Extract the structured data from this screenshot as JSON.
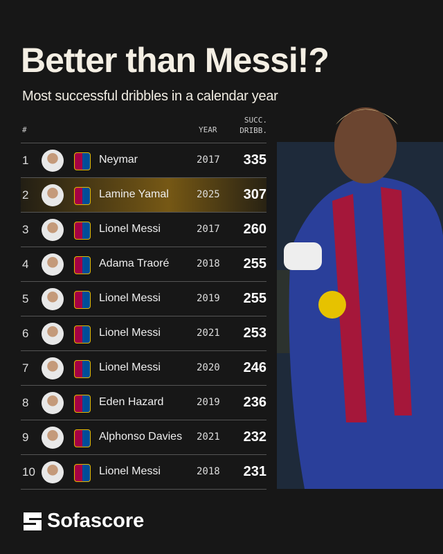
{
  "header": {
    "title": "Better than Messi!?",
    "subtitle": "Most successful dribbles in a calendar year"
  },
  "table": {
    "columns": [
      "#",
      "YEAR",
      "SUCC. DRIBB."
    ],
    "rows": [
      [
        1,
        "Neymar",
        2017,
        335
      ],
      [
        2,
        "Lamine Yamal",
        2025,
        307
      ],
      [
        3,
        "Lionel Messi",
        2017,
        260
      ],
      [
        4,
        "Adama Traoré",
        2018,
        255
      ],
      [
        5,
        "Lionel Messi",
        2019,
        255
      ],
      [
        6,
        "Lionel Messi",
        2021,
        253
      ],
      [
        7,
        "Lionel Messi",
        2020,
        246
      ],
      [
        8,
        "Eden Hazard",
        2019,
        236
      ],
      [
        9,
        "Alphonso Davies",
        2021,
        232
      ],
      [
        10,
        "Lionel Messi",
        2018,
        231
      ]
    ]
  },
  "brand": "Sofascore"
}
